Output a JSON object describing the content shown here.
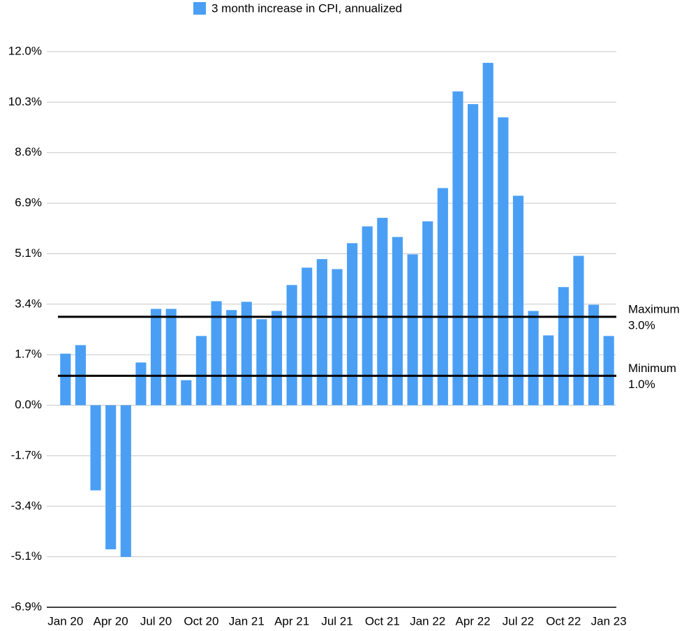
{
  "chart_data": {
    "type": "bar",
    "legend": {
      "position": "top"
    },
    "series": [
      {
        "name": "3 month increase in CPI, annualized",
        "color": "#4a9ff5",
        "values": [
          1.75,
          2.04,
          -2.89,
          -4.89,
          -5.15,
          1.45,
          3.27,
          3.27,
          0.85,
          2.35,
          3.53,
          3.23,
          3.51,
          2.92,
          3.2,
          4.08,
          4.67,
          4.96,
          4.62,
          5.5,
          6.07,
          6.36,
          5.71,
          5.12,
          6.24,
          7.37,
          10.65,
          10.22,
          11.62,
          9.77,
          7.11,
          3.2,
          2.37,
          4.01,
          5.07,
          3.41,
          2.35
        ]
      }
    ],
    "categories": [
      "Jan 20",
      null,
      null,
      "Apr 20",
      null,
      null,
      "Jul 20",
      null,
      null,
      "Oct 20",
      null,
      null,
      "Jan 21",
      null,
      null,
      "Apr 21",
      null,
      null,
      "Jul 21",
      null,
      null,
      "Oct 21",
      null,
      null,
      "Jan 22",
      null,
      null,
      "Apr 22",
      null,
      null,
      "Jul 22",
      null,
      null,
      "Oct 22",
      null,
      null,
      "Jan 23"
    ],
    "ylim": [
      -6.857,
      12
    ],
    "yticks": [
      {
        "value": 12,
        "label": "12.0%"
      },
      {
        "value": 10.286,
        "label": "10.3%"
      },
      {
        "value": 8.571,
        "label": "8.6%"
      },
      {
        "value": 6.857,
        "label": "6.9%"
      },
      {
        "value": 5.143,
        "label": "5.1%"
      },
      {
        "value": 3.429,
        "label": "3.4%"
      },
      {
        "value": 1.714,
        "label": "1.7%"
      },
      {
        "value": 0,
        "label": "0.0%"
      },
      {
        "value": -1.714,
        "label": "-1.7%"
      },
      {
        "value": -3.429,
        "label": "-3.4%"
      },
      {
        "value": -5.143,
        "label": "-5.1%"
      },
      {
        "value": -6.857,
        "label": "-6.9%"
      }
    ],
    "grid": true,
    "reference_lines": [
      {
        "label": "Maximum",
        "value": 3.0,
        "value_label": "3.0%",
        "color": "#000000"
      },
      {
        "label": "Minimum",
        "value": 1.0,
        "value_label": "1.0%",
        "color": "#000000"
      }
    ]
  }
}
